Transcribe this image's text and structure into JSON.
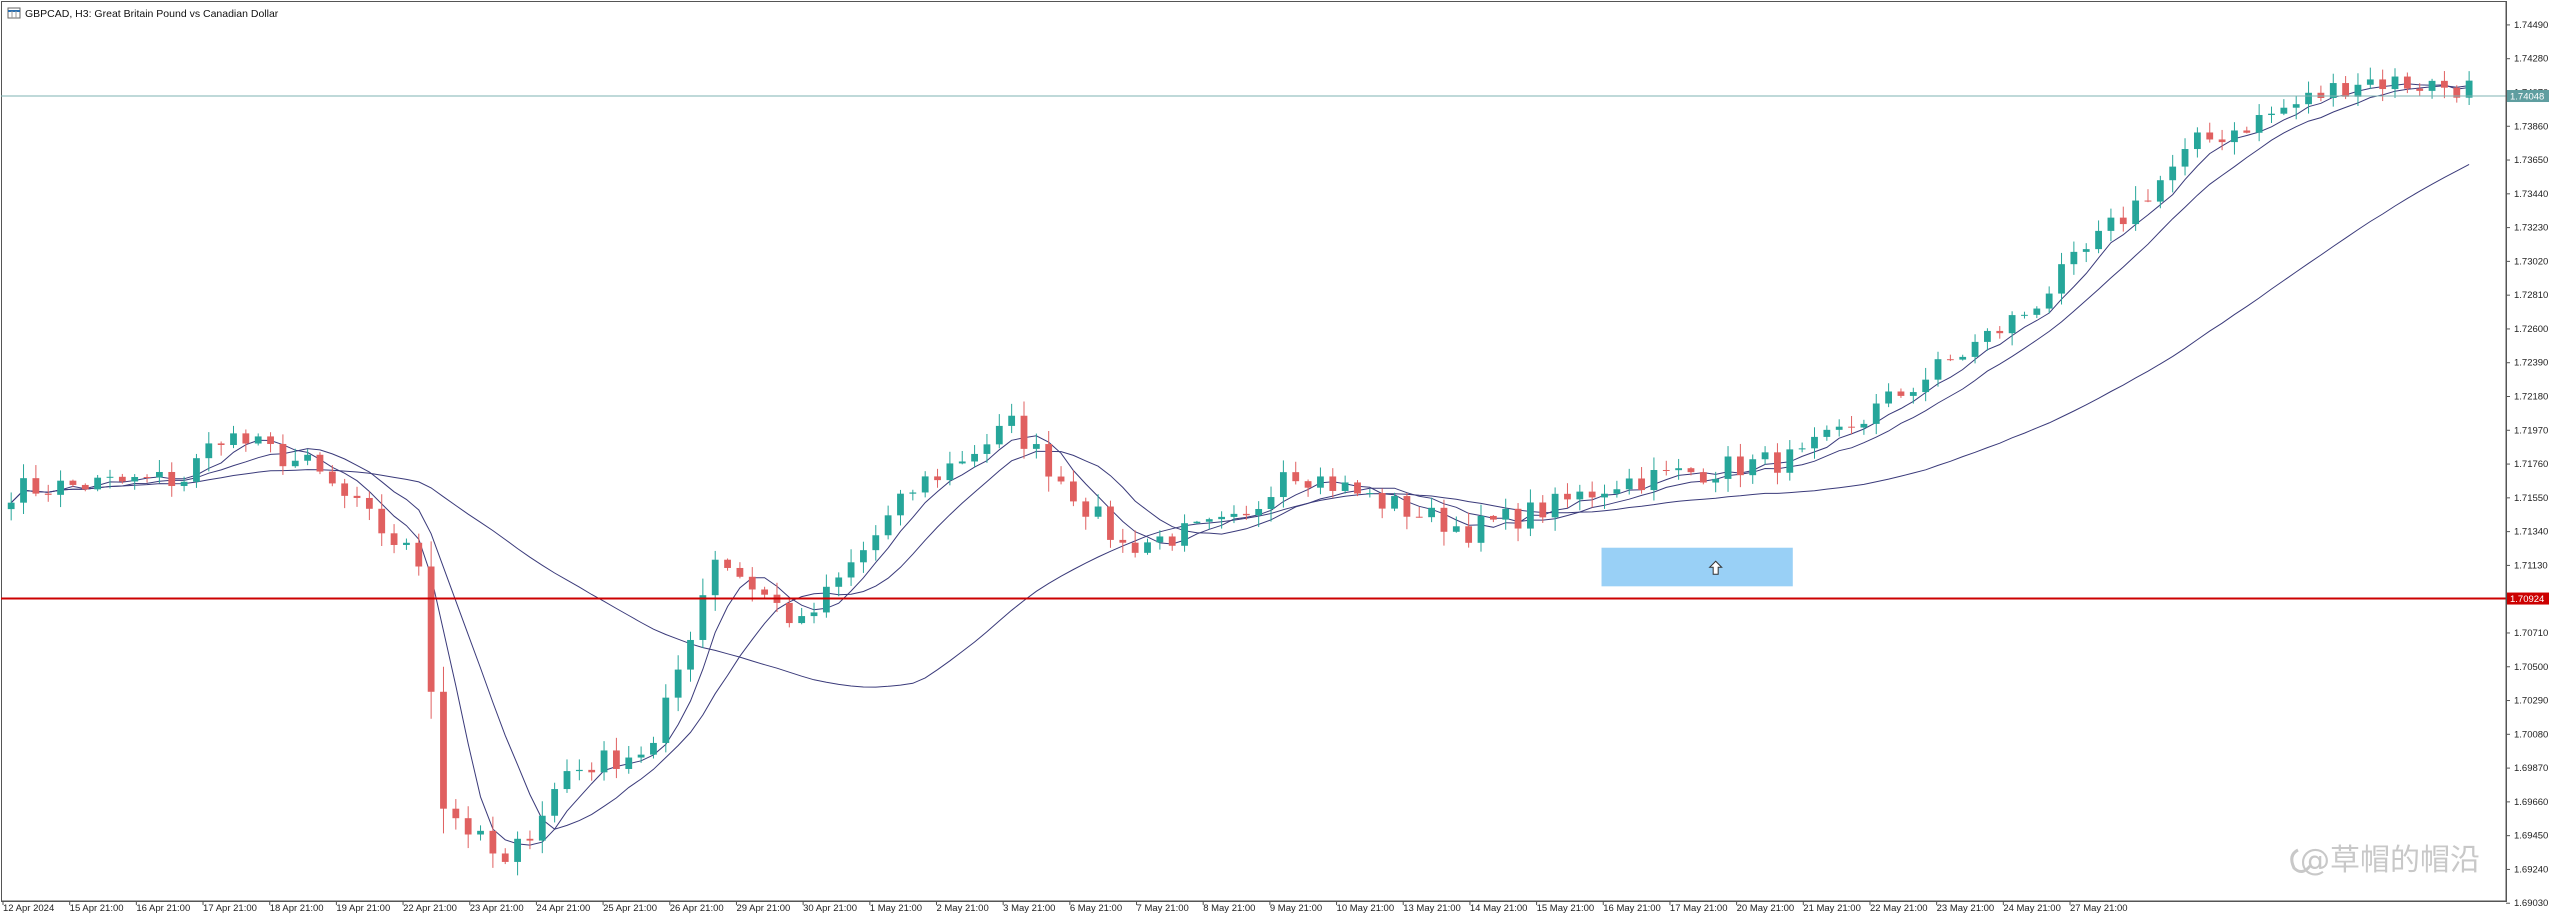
{
  "header": {
    "title": "GBPCAD, H3:  Great Britain Pound vs Canadian Dollar",
    "icon": "chart-window-icon"
  },
  "watermark": "@草帽的帽沿",
  "colors": {
    "bull": "#26a69a",
    "bear": "#e06060",
    "ma": "#3a3a7a",
    "support_line": "#cc0000",
    "current_line": "#7fb3b3",
    "zone": "#8ecbf5",
    "arrow": "#333333"
  },
  "chart_data": {
    "type": "candlestick",
    "symbol": "GBPCAD",
    "timeframe": "H3",
    "ylim": [
      1.6905,
      1.7462
    ],
    "y_ticks": [
      "1.74490",
      "1.74280",
      "1.74070",
      "1.73860",
      "1.73650",
      "1.73440",
      "1.73230",
      "1.73020",
      "1.72810",
      "1.72600",
      "1.72390",
      "1.72180",
      "1.71970",
      "1.71760",
      "1.71550",
      "1.71340",
      "1.71130",
      "1.70920",
      "1.70710",
      "1.70500",
      "1.70290",
      "1.70080",
      "1.69870",
      "1.69660",
      "1.69450",
      "1.69240",
      "1.69030"
    ],
    "x_labels": [
      "12 Apr 2024",
      "15 Apr 21:00",
      "16 Apr 21:00",
      "17 Apr 21:00",
      "18 Apr 21:00",
      "19 Apr 21:00",
      "22 Apr 21:00",
      "23 Apr 21:00",
      "24 Apr 21:00",
      "25 Apr 21:00",
      "26 Apr 21:00",
      "29 Apr 21:00",
      "30 Apr 21:00",
      "1 May 21:00",
      "2 May 21:00",
      "3 May 21:00",
      "6 May 21:00",
      "7 May 21:00",
      "8 May 21:00",
      "9 May 21:00",
      "10 May 21:00",
      "13 May 21:00",
      "14 May 21:00",
      "15 May 21:00",
      "16 May 21:00",
      "17 May 21:00",
      "20 May 21:00",
      "21 May 21:00",
      "22 May 21:00",
      "23 May 21:00",
      "24 May 21:00",
      "27 May 21:00"
    ],
    "candle_count": 200,
    "anchors": [
      [
        0,
        1.716
      ],
      [
        14,
        1.7167
      ],
      [
        17,
        1.7195
      ],
      [
        24,
        1.7175
      ],
      [
        33,
        1.7115
      ],
      [
        35,
        1.6965
      ],
      [
        40,
        1.6925
      ],
      [
        45,
        1.6985
      ],
      [
        52,
        1.7
      ],
      [
        57,
        1.712
      ],
      [
        64,
        1.7075
      ],
      [
        73,
        1.716
      ],
      [
        81,
        1.72
      ],
      [
        90,
        1.7125
      ],
      [
        100,
        1.714
      ],
      [
        103,
        1.7175
      ],
      [
        110,
        1.7155
      ],
      [
        118,
        1.7135
      ],
      [
        125,
        1.715
      ],
      [
        130,
        1.7165
      ],
      [
        145,
        1.718
      ],
      [
        155,
        1.723
      ],
      [
        163,
        1.727
      ],
      [
        177,
        1.7375
      ],
      [
        190,
        1.7415
      ],
      [
        199,
        1.741
      ]
    ],
    "current_price": "1.74048",
    "support_price": "1.70924",
    "moving_averages": [
      "fast",
      "medium",
      "slow"
    ],
    "zone": {
      "y_top": 1.7124,
      "y_bottom": 1.71
    },
    "legend": "none",
    "grid": false
  }
}
